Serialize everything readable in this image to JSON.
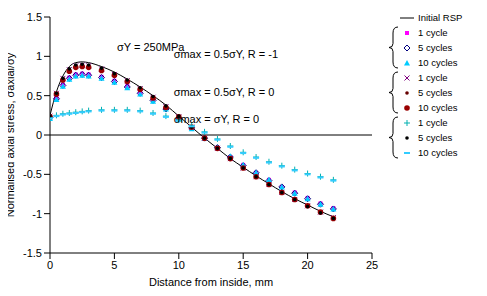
{
  "chart_data": {
    "type": "line",
    "x_label": "Distance from inside, mm",
    "y_label": "Normalised axial stress, σaxial/σy",
    "xlim": [
      0,
      25
    ],
    "xticks": [
      0,
      5,
      10,
      15,
      20,
      25
    ],
    "ylim": [
      -1.5,
      1.5
    ],
    "yticks": [
      -1.5,
      -1,
      -0.5,
      0,
      0.5,
      1,
      1.5
    ],
    "grid": false,
    "annotations": [
      {
        "text": "σY = 250MPa",
        "x": 5.2,
        "y": 1.12
      },
      {
        "text": "σmax = 0.5σY, R = -1",
        "x": 9.6,
        "y": 1.03
      },
      {
        "text": "σmax = 0.5σY, R = 0",
        "x": 9.6,
        "y": 0.55
      },
      {
        "text": "σmax = σY, R = 0",
        "x": 9.6,
        "y": 0.2
      }
    ],
    "x": [
      0,
      0.5,
      1,
      1.5,
      2,
      2.5,
      3,
      4,
      5,
      6,
      7,
      8,
      9,
      10,
      11,
      12,
      13,
      14,
      15,
      16,
      17,
      18,
      19,
      20,
      21,
      22
    ],
    "series": [
      {
        "name": "Initial RSP",
        "type": "line",
        "line_style": "solid",
        "color": "#000000",
        "values": [
          0.25,
          0.55,
          0.75,
          0.87,
          0.92,
          0.93,
          0.92,
          0.87,
          0.8,
          0.71,
          0.61,
          0.5,
          0.38,
          0.24,
          0.1,
          -0.04,
          -0.17,
          -0.3,
          -0.41,
          -0.52,
          -0.62,
          -0.72,
          -0.81,
          -0.89,
          -0.97,
          -1.04
        ]
      },
      {
        "name": "1 cycle",
        "type": "scatter",
        "marker": "square",
        "color": "#ff00ff",
        "values": [
          0.22,
          0.47,
          0.64,
          0.73,
          0.77,
          0.78,
          0.77,
          0.74,
          0.69,
          0.62,
          0.54,
          0.45,
          0.34,
          0.22,
          0.09,
          -0.04,
          -0.16,
          -0.28,
          -0.38,
          -0.48,
          -0.57,
          -0.66,
          -0.73,
          -0.8,
          -0.87,
          -0.93
        ]
      },
      {
        "name": "5 cycles",
        "type": "scatter",
        "marker": "diamond",
        "color": "#000080",
        "values": [
          0.22,
          0.46,
          0.63,
          0.72,
          0.76,
          0.77,
          0.76,
          0.73,
          0.68,
          0.61,
          0.53,
          0.44,
          0.33,
          0.21,
          0.09,
          -0.04,
          -0.16,
          -0.28,
          -0.39,
          -0.48,
          -0.58,
          -0.66,
          -0.74,
          -0.81,
          -0.88,
          -0.94
        ]
      },
      {
        "name": "10 cycles",
        "type": "scatter",
        "marker": "triangle",
        "color": "#00ccff",
        "values": [
          0.21,
          0.45,
          0.62,
          0.71,
          0.75,
          0.76,
          0.75,
          0.72,
          0.67,
          0.6,
          0.52,
          0.43,
          0.33,
          0.21,
          0.08,
          -0.04,
          -0.16,
          -0.27,
          -0.38,
          -0.48,
          -0.57,
          -0.66,
          -0.74,
          -0.81,
          -0.88,
          -0.94
        ]
      },
      {
        "name": "1 cycle",
        "type": "scatter",
        "marker": "x",
        "color": "#800080",
        "values": [
          0.24,
          0.53,
          0.72,
          0.83,
          0.88,
          0.89,
          0.88,
          0.84,
          0.77,
          0.69,
          0.59,
          0.48,
          0.36,
          0.23,
          0.1,
          -0.04,
          -0.17,
          -0.3,
          -0.42,
          -0.53,
          -0.63,
          -0.73,
          -0.82,
          -0.9,
          -0.98,
          -1.05
        ]
      },
      {
        "name": "5 cycles",
        "type": "scatter",
        "marker": "dot",
        "color": "#660000",
        "values": [
          0.24,
          0.52,
          0.71,
          0.82,
          0.87,
          0.88,
          0.87,
          0.83,
          0.76,
          0.68,
          0.58,
          0.47,
          0.35,
          0.23,
          0.1,
          -0.04,
          -0.17,
          -0.3,
          -0.42,
          -0.53,
          -0.63,
          -0.73,
          -0.82,
          -0.9,
          -0.98,
          -1.05
        ]
      },
      {
        "name": "10 cycles",
        "type": "scatter",
        "marker": "circle",
        "color": "#990000",
        "values": [
          0.23,
          0.52,
          0.7,
          0.81,
          0.86,
          0.87,
          0.86,
          0.82,
          0.76,
          0.68,
          0.58,
          0.47,
          0.35,
          0.23,
          0.1,
          -0.04,
          -0.17,
          -0.3,
          -0.42,
          -0.53,
          -0.63,
          -0.73,
          -0.82,
          -0.9,
          -0.98,
          -1.06
        ]
      },
      {
        "name": "1 cycle",
        "type": "scatter",
        "marker": "plus",
        "color": "#00b0b0",
        "values": [
          0.22,
          0.25,
          0.27,
          0.28,
          0.29,
          0.3,
          0.31,
          0.32,
          0.32,
          0.32,
          0.31,
          0.28,
          0.24,
          0.19,
          0.12,
          0.04,
          -0.05,
          -0.14,
          -0.22,
          -0.28,
          -0.34,
          -0.39,
          -0.44,
          -0.49,
          -0.53,
          -0.57
        ]
      },
      {
        "name": "5 cycles",
        "type": "scatter",
        "marker": "dot",
        "color": "#000000",
        "values": [
          0.24,
          0.53,
          0.72,
          0.84,
          0.89,
          0.9,
          0.89,
          0.85,
          0.78,
          0.7,
          0.6,
          0.49,
          0.37,
          0.24,
          0.1,
          -0.04,
          -0.17,
          -0.3,
          -0.42,
          -0.53,
          -0.63,
          -0.73,
          -0.82,
          -0.91,
          -0.99,
          -1.06
        ]
      },
      {
        "name": "10 cycles",
        "type": "scatter",
        "marker": "dash",
        "color": "#33ccff",
        "values": [
          0.21,
          0.24,
          0.26,
          0.27,
          0.28,
          0.29,
          0.3,
          0.31,
          0.31,
          0.31,
          0.3,
          0.27,
          0.23,
          0.18,
          0.11,
          0.03,
          -0.06,
          -0.15,
          -0.23,
          -0.29,
          -0.35,
          -0.4,
          -0.45,
          -0.5,
          -0.54,
          -0.58
        ]
      }
    ]
  }
}
